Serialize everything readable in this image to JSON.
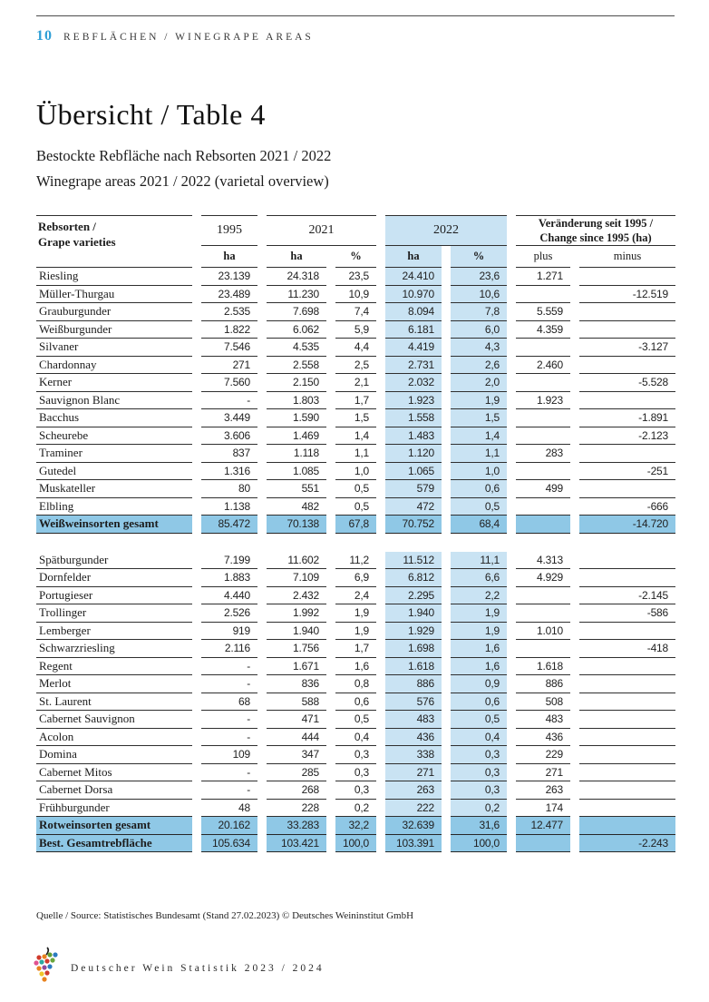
{
  "page_header": {
    "page_number": "10",
    "section_title": "Rebflächen / Winegrape Areas"
  },
  "title": "Übersicht / Table 4",
  "subtitle_de": "Bestockte Rebfläche nach Rebsorten 2021 / 2022",
  "subtitle_en": "Winegrape areas 2021 / 2022 (varietal overview)",
  "table": {
    "header": {
      "variety_line1": "Rebsorten /",
      "variety_line2": "Grape varieties",
      "y1995": "1995",
      "y2021": "2021",
      "y2022": "2022",
      "change_line1": "Veränderung seit 1995 /",
      "change_line2": "Change since 1995 (ha)",
      "sub_ha": "ha",
      "sub_pct": "%",
      "sub_plus": "plus",
      "sub_minus": "minus"
    },
    "rows": [
      {
        "type": "data",
        "cells": [
          "Riesling",
          "23.139",
          "24.318",
          "23,5",
          "24.410",
          "23,6",
          "1.271",
          ""
        ]
      },
      {
        "type": "data",
        "cells": [
          "Müller-Thurgau",
          "23.489",
          "11.230",
          "10,9",
          "10.970",
          "10,6",
          "",
          "-12.519"
        ]
      },
      {
        "type": "data",
        "cells": [
          "Grauburgunder",
          "2.535",
          "7.698",
          "7,4",
          "8.094",
          "7,8",
          "5.559",
          ""
        ]
      },
      {
        "type": "data",
        "cells": [
          "Weißburgunder",
          "1.822",
          "6.062",
          "5,9",
          "6.181",
          "6,0",
          "4.359",
          ""
        ]
      },
      {
        "type": "data",
        "cells": [
          "Silvaner",
          "7.546",
          "4.535",
          "4,4",
          "4.419",
          "4,3",
          "",
          "-3.127"
        ]
      },
      {
        "type": "data",
        "cells": [
          "Chardonnay",
          "271",
          "2.558",
          "2,5",
          "2.731",
          "2,6",
          "2.460",
          ""
        ]
      },
      {
        "type": "data",
        "cells": [
          "Kerner",
          "7.560",
          "2.150",
          "2,1",
          "2.032",
          "2,0",
          "",
          "-5.528"
        ]
      },
      {
        "type": "data",
        "cells": [
          "Sauvignon Blanc",
          "-",
          "1.803",
          "1,7",
          "1.923",
          "1,9",
          "1.923",
          ""
        ]
      },
      {
        "type": "data",
        "cells": [
          "Bacchus",
          "3.449",
          "1.590",
          "1,5",
          "1.558",
          "1,5",
          "",
          "-1.891"
        ]
      },
      {
        "type": "data",
        "cells": [
          "Scheurebe",
          "3.606",
          "1.469",
          "1,4",
          "1.483",
          "1,4",
          "",
          "-2.123"
        ]
      },
      {
        "type": "data",
        "cells": [
          "Traminer",
          "837",
          "1.118",
          "1,1",
          "1.120",
          "1,1",
          "283",
          ""
        ]
      },
      {
        "type": "data",
        "cells": [
          "Gutedel",
          "1.316",
          "1.085",
          "1,0",
          "1.065",
          "1,0",
          "",
          "-251"
        ]
      },
      {
        "type": "data",
        "cells": [
          "Muskateller",
          "80",
          "551",
          "0,5",
          "579",
          "0,6",
          "499",
          ""
        ]
      },
      {
        "type": "data",
        "cells": [
          "Elbling",
          "1.138",
          "482",
          "0,5",
          "472",
          "0,5",
          "",
          "-666"
        ]
      },
      {
        "type": "total",
        "cells": [
          "Weißweinsorten gesamt",
          "85.472",
          "70.138",
          "67,8",
          "70.752",
          "68,4",
          "",
          "-14.720"
        ]
      },
      {
        "type": "gap"
      },
      {
        "type": "data",
        "cells": [
          "Spätburgunder",
          "7.199",
          "11.602",
          "11,2",
          "11.512",
          "11,1",
          "4.313",
          ""
        ]
      },
      {
        "type": "data",
        "cells": [
          "Dornfelder",
          "1.883",
          "7.109",
          "6,9",
          "6.812",
          "6,6",
          "4.929",
          ""
        ]
      },
      {
        "type": "data",
        "cells": [
          "Portugieser",
          "4.440",
          "2.432",
          "2,4",
          "2.295",
          "2,2",
          "",
          "-2.145"
        ]
      },
      {
        "type": "data",
        "cells": [
          "Trollinger",
          "2.526",
          "1.992",
          "1,9",
          "1.940",
          "1,9",
          "",
          "-586"
        ]
      },
      {
        "type": "data",
        "cells": [
          "Lemberger",
          "919",
          "1.940",
          "1,9",
          "1.929",
          "1,9",
          "1.010",
          ""
        ]
      },
      {
        "type": "data",
        "cells": [
          "Schwarzriesling",
          "2.116",
          "1.756",
          "1,7",
          "1.698",
          "1,6",
          "",
          "-418"
        ]
      },
      {
        "type": "data",
        "cells": [
          "Regent",
          "-",
          "1.671",
          "1,6",
          "1.618",
          "1,6",
          "1.618",
          ""
        ]
      },
      {
        "type": "data",
        "cells": [
          "Merlot",
          "-",
          "836",
          "0,8",
          "886",
          "0,9",
          "886",
          ""
        ]
      },
      {
        "type": "data",
        "cells": [
          "St. Laurent",
          "68",
          "588",
          "0,6",
          "576",
          "0,6",
          "508",
          ""
        ]
      },
      {
        "type": "data",
        "cells": [
          "Cabernet Sauvignon",
          "-",
          "471",
          "0,5",
          "483",
          "0,5",
          "483",
          ""
        ]
      },
      {
        "type": "data",
        "cells": [
          "Acolon",
          "-",
          "444",
          "0,4",
          "436",
          "0,4",
          "436",
          ""
        ]
      },
      {
        "type": "data",
        "cells": [
          "Domina",
          "109",
          "347",
          "0,3",
          "338",
          "0,3",
          "229",
          ""
        ]
      },
      {
        "type": "data",
        "cells": [
          "Cabernet Mitos",
          "-",
          "285",
          "0,3",
          "271",
          "0,3",
          "271",
          ""
        ]
      },
      {
        "type": "data",
        "cells": [
          "Cabernet Dorsa",
          "-",
          "268",
          "0,3",
          "263",
          "0,3",
          "263",
          ""
        ]
      },
      {
        "type": "data",
        "cells": [
          "Frühburgunder",
          "48",
          "228",
          "0,2",
          "222",
          "0,2",
          "174",
          ""
        ]
      },
      {
        "type": "total",
        "cells": [
          "Rotweinsorten gesamt",
          "20.162",
          "33.283",
          "32,2",
          "32.639",
          "31,6",
          "12.477",
          ""
        ]
      },
      {
        "type": "total",
        "cells": [
          "Best. Gesamtrebfläche",
          "105.634",
          "103.421",
          "100,0",
          "103.391",
          "100,0",
          "",
          "-2.243"
        ]
      }
    ]
  },
  "source_line": "Quelle / Source: Statistisches Bundesamt (Stand 27.02.2023) © Deutsches Weininstitut GmbH",
  "footer_text": "Deutscher Wein Statistik 2023 / 2024",
  "colors": {
    "accent_blue": "#2f9fd6",
    "column_highlight": "#c9e3f3",
    "total_row_highlight": "#8fc8e6",
    "line": "#2f2f2f"
  }
}
